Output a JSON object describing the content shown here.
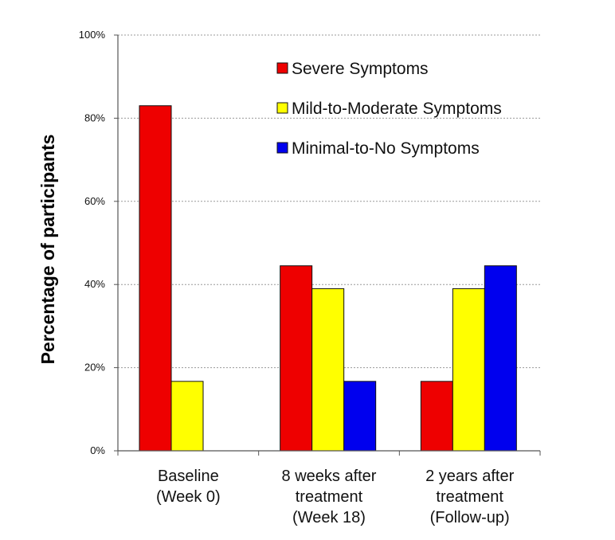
{
  "chart_data": {
    "type": "bar",
    "categories": [
      [
        "Baseline",
        "(Week 0)"
      ],
      [
        "8 weeks after",
        "treatment",
        "(Week 18)"
      ],
      [
        "2 years after",
        "treatment",
        "(Follow-up)"
      ]
    ],
    "ylabel": "Percentage of participants",
    "ylim": [
      0,
      100
    ],
    "yticks": [
      0,
      20,
      40,
      60,
      80,
      100
    ],
    "ytick_labels": [
      "0%",
      "20%",
      "40%",
      "60%",
      "80%",
      "100%"
    ],
    "grid": true,
    "legend_position": "top-right",
    "series": [
      {
        "name": "Severe Symptoms",
        "color": "#ee0000",
        "values": [
          83,
          44.5,
          16.7
        ]
      },
      {
        "name": "Mild-to-Moderate Symptoms",
        "color": "#ffff00",
        "values": [
          16.7,
          39,
          39
        ]
      },
      {
        "name": "Minimal-to-No Symptoms",
        "color": "#0000ee",
        "values": [
          0,
          16.7,
          44.5
        ]
      }
    ]
  }
}
